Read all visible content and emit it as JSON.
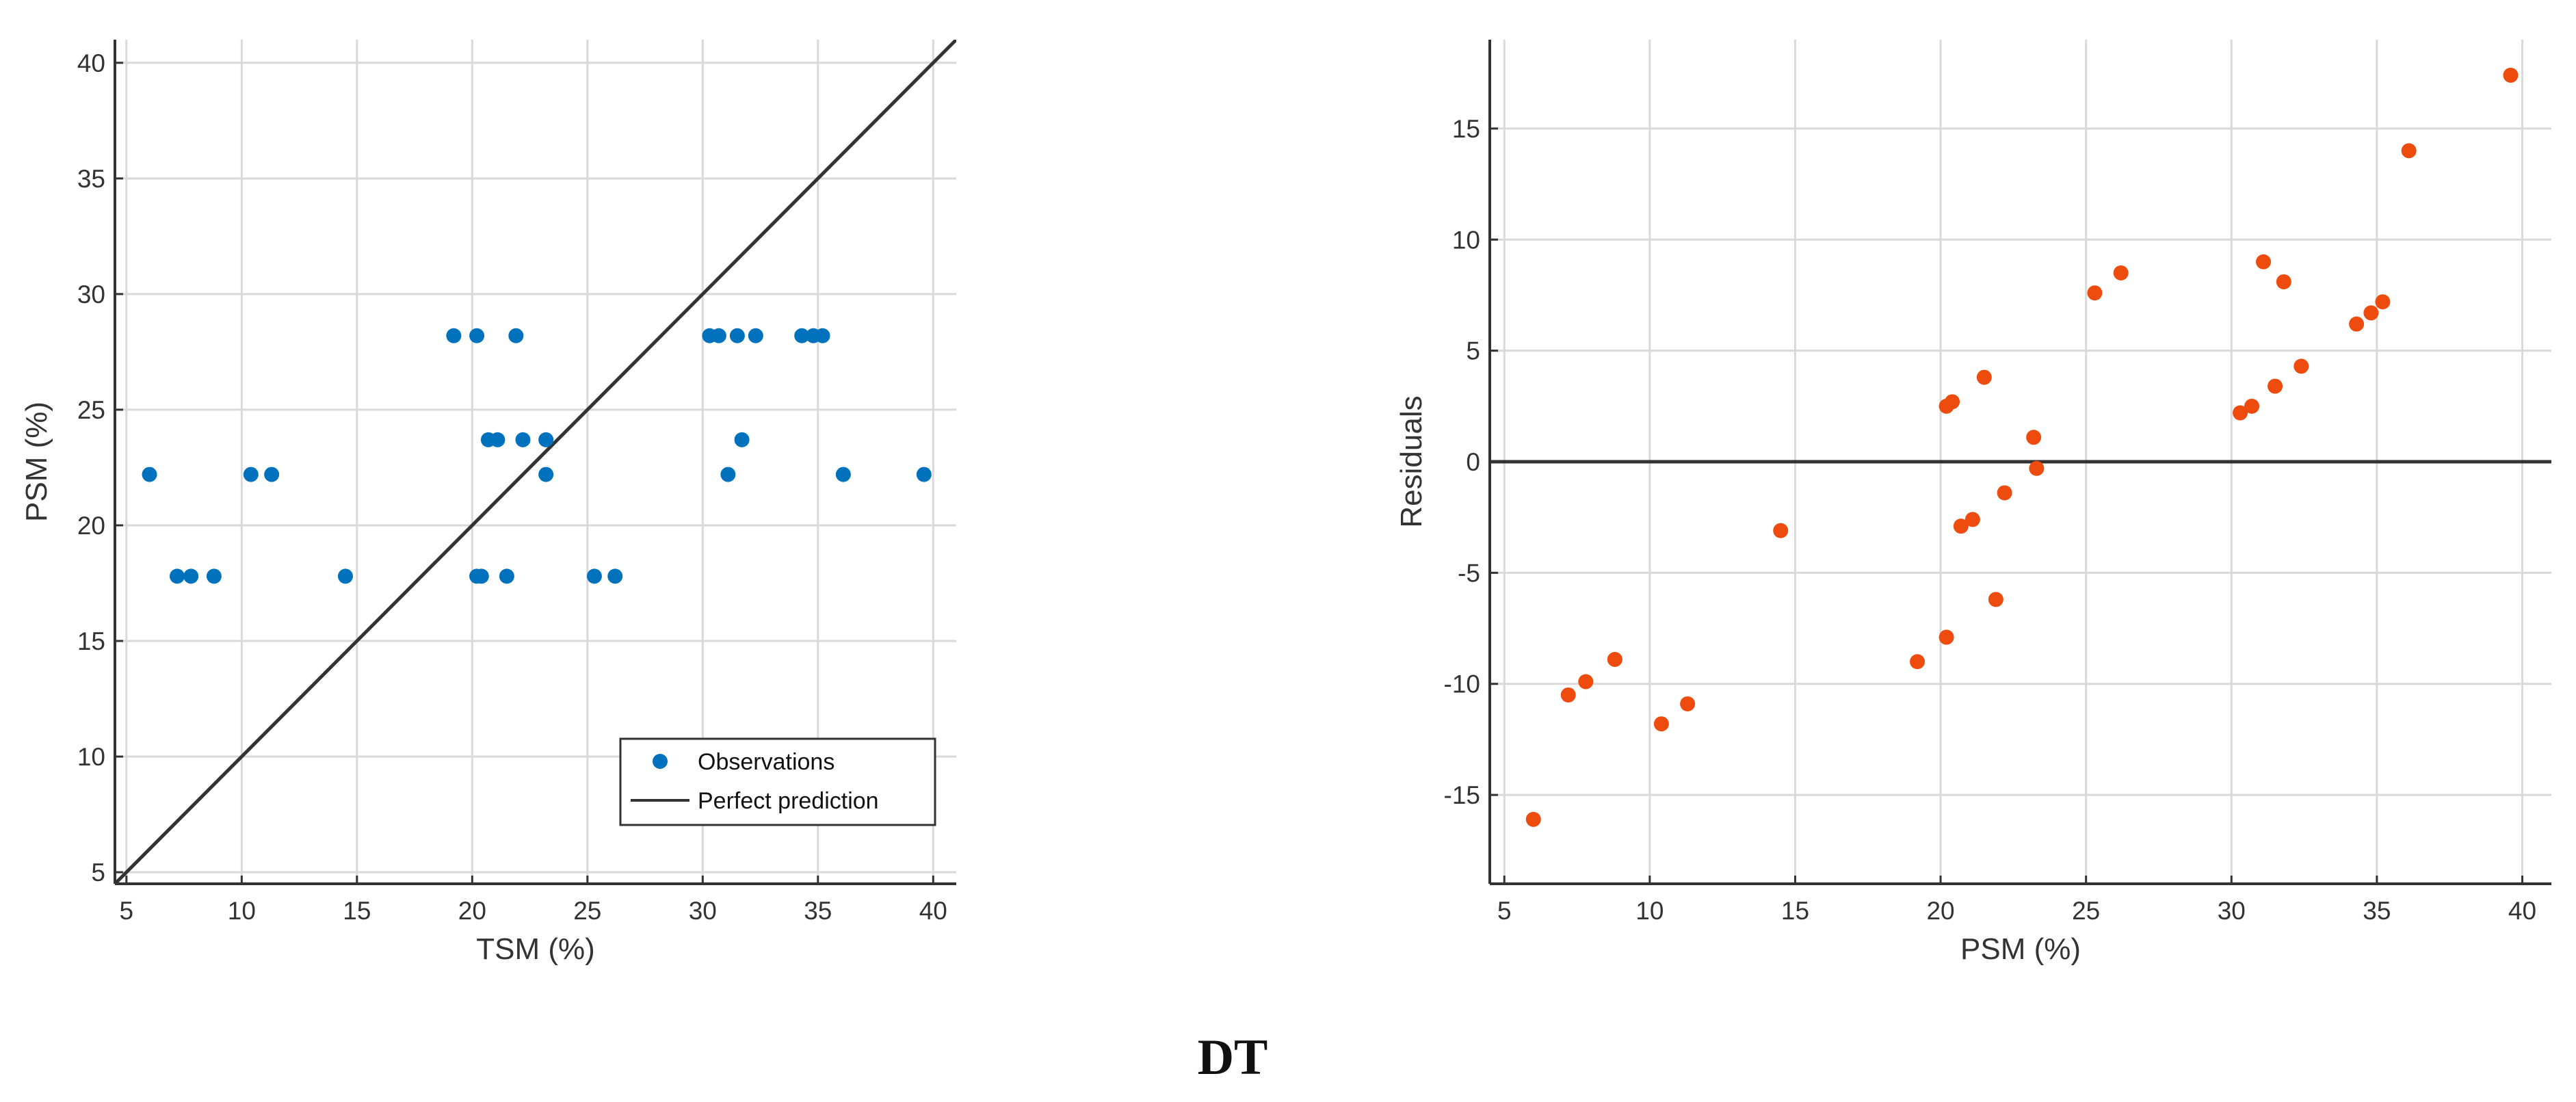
{
  "caption": "DT",
  "chart_data": [
    {
      "type": "scatter",
      "title": "",
      "xlabel": "TSM (%)",
      "ylabel": "PSM (%)",
      "xlim": [
        4.5,
        41
      ],
      "ylim": [
        4.5,
        41
      ],
      "xticks": [
        5,
        10,
        15,
        20,
        25,
        30,
        35,
        40
      ],
      "yticks": [
        5,
        10,
        15,
        20,
        25,
        30,
        35,
        40
      ],
      "grid": true,
      "legend_position": "bottom-right",
      "series": [
        {
          "name": "Observations",
          "kind": "points",
          "color": "#0072BD",
          "points": [
            {
              "x": 6.0,
              "y": 22.2
            },
            {
              "x": 7.2,
              "y": 17.8
            },
            {
              "x": 7.8,
              "y": 17.8
            },
            {
              "x": 8.8,
              "y": 17.8
            },
            {
              "x": 10.4,
              "y": 22.2
            },
            {
              "x": 11.3,
              "y": 22.2
            },
            {
              "x": 14.5,
              "y": 17.8
            },
            {
              "x": 19.2,
              "y": 28.2
            },
            {
              "x": 20.2,
              "y": 28.2
            },
            {
              "x": 20.2,
              "y": 17.8
            },
            {
              "x": 20.4,
              "y": 17.8
            },
            {
              "x": 20.7,
              "y": 23.7
            },
            {
              "x": 21.1,
              "y": 23.7
            },
            {
              "x": 21.5,
              "y": 17.8
            },
            {
              "x": 21.9,
              "y": 28.2
            },
            {
              "x": 22.2,
              "y": 23.7
            },
            {
              "x": 23.2,
              "y": 23.7
            },
            {
              "x": 23.2,
              "y": 22.2
            },
            {
              "x": 25.3,
              "y": 17.8
            },
            {
              "x": 26.2,
              "y": 17.8
            },
            {
              "x": 30.3,
              "y": 28.2
            },
            {
              "x": 30.7,
              "y": 28.2
            },
            {
              "x": 31.1,
              "y": 22.2
            },
            {
              "x": 31.5,
              "y": 28.2
            },
            {
              "x": 31.7,
              "y": 23.7
            },
            {
              "x": 32.3,
              "y": 28.2
            },
            {
              "x": 34.3,
              "y": 28.2
            },
            {
              "x": 34.8,
              "y": 28.2
            },
            {
              "x": 35.2,
              "y": 28.2
            },
            {
              "x": 36.1,
              "y": 22.2
            },
            {
              "x": 39.6,
              "y": 22.2
            }
          ]
        },
        {
          "name": "Perfect prediction",
          "kind": "line",
          "color": "#333333",
          "points": [
            {
              "x": 4.5,
              "y": 4.5
            },
            {
              "x": 41,
              "y": 41
            }
          ]
        }
      ]
    },
    {
      "type": "scatter",
      "title": "",
      "xlabel": "PSM (%)",
      "ylabel": "Residuals",
      "xlim": [
        4.5,
        41
      ],
      "ylim": [
        -19,
        19
      ],
      "xticks": [
        5,
        10,
        15,
        20,
        25,
        30,
        35,
        40
      ],
      "yticks": [
        -15,
        -10,
        -5,
        0,
        5,
        10,
        15
      ],
      "yticklabels": [
        "-15",
        "-10",
        "-5",
        "0",
        "5",
        "10",
        "15"
      ],
      "grid": true,
      "reference_line_y": 0,
      "series": [
        {
          "name": "Residuals",
          "kind": "points",
          "color": "#EE4B0F",
          "points": [
            {
              "x": 6.0,
              "y": -16.1
            },
            {
              "x": 7.2,
              "y": -10.5
            },
            {
              "x": 7.8,
              "y": -9.9
            },
            {
              "x": 8.8,
              "y": -8.9
            },
            {
              "x": 10.4,
              "y": -11.8
            },
            {
              "x": 11.3,
              "y": -10.9
            },
            {
              "x": 14.5,
              "y": -3.1
            },
            {
              "x": 19.2,
              "y": -9.0
            },
            {
              "x": 20.2,
              "y": -7.9
            },
            {
              "x": 20.2,
              "y": 2.5
            },
            {
              "x": 20.4,
              "y": 2.7
            },
            {
              "x": 20.7,
              "y": -2.9
            },
            {
              "x": 21.1,
              "y": -2.6
            },
            {
              "x": 21.5,
              "y": 3.8
            },
            {
              "x": 21.9,
              "y": -6.2
            },
            {
              "x": 22.2,
              "y": -1.4
            },
            {
              "x": 23.2,
              "y": 1.1
            },
            {
              "x": 23.3,
              "y": -0.3
            },
            {
              "x": 25.3,
              "y": 7.6
            },
            {
              "x": 26.2,
              "y": 8.5
            },
            {
              "x": 30.3,
              "y": 2.2
            },
            {
              "x": 30.7,
              "y": 2.5
            },
            {
              "x": 31.1,
              "y": 9.0
            },
            {
              "x": 31.5,
              "y": 3.4
            },
            {
              "x": 31.8,
              "y": 8.1
            },
            {
              "x": 32.4,
              "y": 4.3
            },
            {
              "x": 34.3,
              "y": 6.2
            },
            {
              "x": 34.8,
              "y": 6.7
            },
            {
              "x": 35.2,
              "y": 7.2
            },
            {
              "x": 36.1,
              "y": 14.0
            },
            {
              "x": 39.6,
              "y": 17.4
            }
          ]
        }
      ]
    }
  ]
}
